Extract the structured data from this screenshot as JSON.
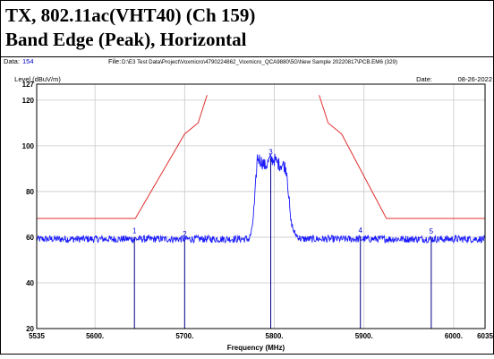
{
  "header": {
    "title_line1": "TX, 802.11ac(VHT40) (Ch 159)",
    "title_line2": "Band Edge (Peak), Horizontal"
  },
  "meta": {
    "data_label": "Data:",
    "data_value": "154",
    "file_label": "File:",
    "file_path": "D:\\E3 Test Data\\Project\\Voxmicro\\4790224862_Voxmicro_QCA9880\\5G\\New Sample 20220817\\PCB.EM6 (329)",
    "date_label": "Date:",
    "date_value": "08-26-2022"
  },
  "colors": {
    "trace": "#1a1aff",
    "limit": "#e03030",
    "markers": "#00008b",
    "grid": "#c8c8c8",
    "label_blue": "#0000cc"
  },
  "chart_data": {
    "type": "line",
    "xlabel": "Frequency (MHz)",
    "ylabel": "Level (dBuV/m)",
    "xlim": [
      5535,
      6035
    ],
    "ylim": [
      20,
      127
    ],
    "x_ticks": [
      5535,
      5600,
      5700,
      5800,
      5900,
      6000,
      6035
    ],
    "x_tick_labels": [
      "5535",
      "5600.",
      "5700.",
      "5800.",
      "5900.",
      "6000.",
      "6035"
    ],
    "y_ticks": [
      20,
      40,
      60,
      80,
      100,
      120,
      127
    ],
    "y_tick_labels": [
      "20",
      "40",
      "60",
      "80",
      "100",
      "120",
      "127"
    ],
    "grid": true,
    "series": [
      {
        "kind": "limit",
        "segments": [
          [
            [
              5535,
              68.2
            ],
            [
              5645,
              68.2
            ],
            [
              5700,
              105.2
            ],
            [
              5715,
              110
            ],
            [
              5725,
              122.2
            ]
          ],
          [
            [
              5850,
              122.2
            ],
            [
              5860,
              110
            ],
            [
              5875,
              105.2
            ],
            [
              5925,
              68.2
            ],
            [
              6035,
              68.2
            ]
          ]
        ]
      },
      {
        "kind": "trace",
        "noise_floor": 59.2,
        "envelope": [
          [
            5535,
            59.2
          ],
          [
            5772,
            59.2
          ],
          [
            5775,
            63
          ],
          [
            5778,
            75
          ],
          [
            5781,
            95
          ],
          [
            5786,
            93
          ],
          [
            5790,
            91
          ],
          [
            5795,
            94
          ],
          [
            5800,
            94
          ],
          [
            5805,
            92
          ],
          [
            5811,
            91.5
          ],
          [
            5814,
            89
          ],
          [
            5818,
            68
          ],
          [
            5822,
            62
          ],
          [
            5827,
            60
          ],
          [
            5830,
            59.2
          ],
          [
            6035,
            59.2
          ]
        ]
      }
    ],
    "markers": [
      {
        "label": "1",
        "x": 5644,
        "y": 60.1
      },
      {
        "label": "2",
        "x": 5700,
        "y": 58.9
      },
      {
        "label": "3",
        "x": 5796,
        "y": 94.6
      },
      {
        "label": "4",
        "x": 5896,
        "y": 60.4
      },
      {
        "label": "5",
        "x": 5975,
        "y": 60
      }
    ]
  }
}
